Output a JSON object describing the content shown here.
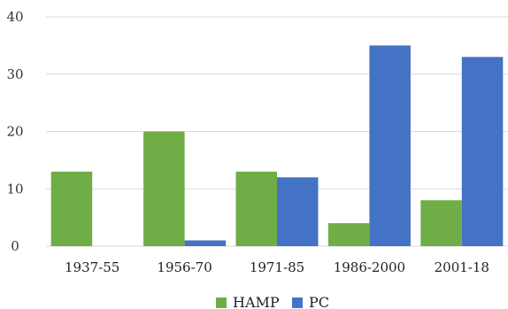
{
  "chart_data": {
    "type": "bar",
    "categories": [
      "1937-55",
      "1956-70",
      "1971-85",
      "1986-2000",
      "2001-18"
    ],
    "series": [
      {
        "name": "HAMP",
        "color": "#70ad47",
        "values": [
          13,
          20,
          13,
          4,
          8
        ]
      },
      {
        "name": "PC",
        "color": "#4472c4",
        "values": [
          0,
          1,
          12,
          35,
          33
        ]
      }
    ],
    "ylim": [
      0,
      40
    ],
    "yticks": [
      "0",
      "10",
      "20",
      "30",
      "40"
    ],
    "grid": true,
    "legend_position": "bottom-center",
    "title": "",
    "xlabel": "",
    "ylabel": ""
  }
}
